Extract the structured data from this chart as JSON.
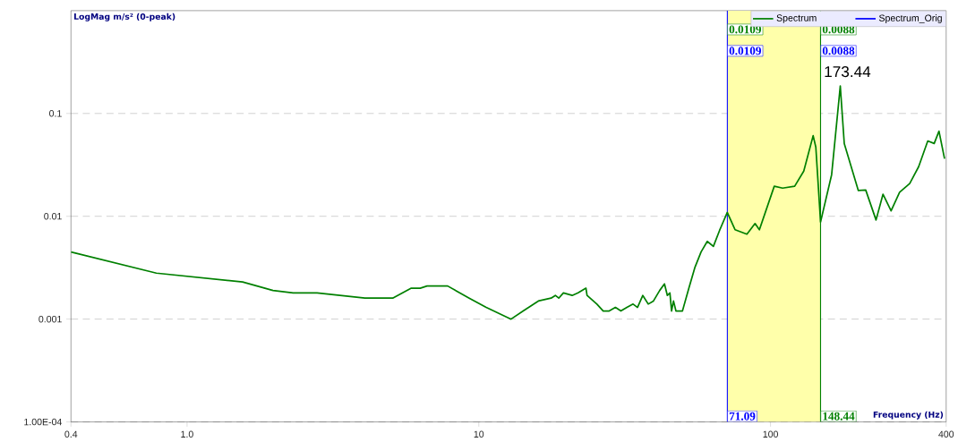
{
  "chart_data": {
    "type": "line",
    "xlabel": "Frequency (Hz)",
    "ylabel": "LogMag m/s² (0-peak)",
    "log": "xy",
    "grid": "y",
    "legend": "top right",
    "xlim": [
      0.4,
      400
    ],
    "ylim": [
      0.0001,
      1
    ],
    "xticks": [
      0.4,
      {
        "value": 1,
        "label": "1.0"
      },
      10,
      100,
      400
    ],
    "yticks": [
      {
        "value": 0.0001,
        "label": "1.00E-04"
      },
      0.001,
      0.01,
      0.1
    ],
    "x": [
      0.4,
      0.785,
      1.55,
      1.97,
      2.31,
      2.79,
      4.07,
      5.07,
      5.87,
      6.3,
      6.65,
      7.82,
      9.27,
      10.6,
      12.9,
      14.2,
      16.0,
      17.7,
      18.3,
      18.8,
      19.5,
      20.9,
      21.9,
      23.3,
      23.5,
      25.4,
      26.7,
      28.0,
      29.4,
      30.7,
      32.2,
      33.8,
      35.0,
      36.5,
      38.1,
      39.7,
      41.7,
      43.3,
      44.3,
      45.2,
      45.8,
      46.5,
      47.4,
      49.9,
      52.5,
      55.1,
      57.8,
      60.7,
      63.7,
      66.9,
      71.09,
      75.6,
      83,
      88.5,
      91.6,
      103,
      110,
      121,
      130,
      140,
      143,
      148.44,
      162,
      173.44,
      179,
      200,
      212,
      230,
      243,
      259,
      277,
      300,
      322,
      346,
      364,
      378,
      395
    ],
    "series": [
      {
        "name": "Spectrum",
        "color": "#008000",
        "values": [
          0.0045,
          0.0028,
          0.0023,
          0.0019,
          0.0018,
          0.0018,
          0.0016,
          0.0016,
          0.002,
          0.002,
          0.0021,
          0.0021,
          0.0016,
          0.0013,
          0.001,
          0.0012,
          0.0015,
          0.0016,
          0.0017,
          0.0016,
          0.0018,
          0.0017,
          0.0018,
          0.002,
          0.0017,
          0.0014,
          0.0012,
          0.0012,
          0.0013,
          0.0012,
          0.0013,
          0.0014,
          0.0013,
          0.0017,
          0.0014,
          0.0015,
          0.0019,
          0.0022,
          0.0017,
          0.0018,
          0.0012,
          0.0015,
          0.0012,
          0.0012,
          0.002,
          0.0032,
          0.0045,
          0.0057,
          0.0051,
          0.0073,
          0.0109,
          0.0074,
          0.0067,
          0.0085,
          0.0074,
          0.0196,
          0.0188,
          0.0196,
          0.0275,
          0.0608,
          0.047,
          0.0088,
          0.0254,
          0.185,
          0.0509,
          0.0178,
          0.018,
          0.0092,
          0.0164,
          0.0113,
          0.0171,
          0.0208,
          0.0304,
          0.054,
          0.051,
          0.0673,
          0.0363
        ]
      },
      {
        "name": "Spectrum_Orig",
        "color": "#0000ff",
        "values": [
          null,
          null,
          null,
          null,
          null,
          null,
          null,
          null,
          null,
          null,
          null,
          null,
          null,
          null,
          null,
          null,
          null,
          null,
          null,
          null,
          null,
          null,
          null,
          null,
          null,
          null,
          null,
          null,
          null,
          null,
          null,
          null,
          null,
          null,
          null,
          null,
          null,
          null,
          null,
          null,
          null,
          null,
          null,
          null,
          null,
          null,
          null,
          null,
          null,
          null,
          null,
          null,
          null,
          null,
          null,
          null,
          null,
          null,
          null,
          null,
          null,
          null,
          null,
          null,
          null,
          null,
          null,
          null,
          null,
          null,
          null,
          null,
          null,
          null,
          null,
          null,
          null
        ]
      }
    ],
    "bands": [
      {
        "axis": "x",
        "from": 71.09,
        "to": 148.44,
        "color": "#ffffaa"
      }
    ],
    "ref_lines": [
      {
        "axis": "x",
        "value": 71.09,
        "label": "71.09",
        "color": "#0000ff"
      },
      {
        "axis": "x",
        "value": 148.44,
        "label": "148.44",
        "color": "#008000"
      }
    ],
    "annotations": [
      "0.0109",
      "0.0109",
      "0.0088",
      "0.0088",
      {
        "text": "173.44",
        "x": 173.44,
        "y": 0.185
      }
    ]
  }
}
